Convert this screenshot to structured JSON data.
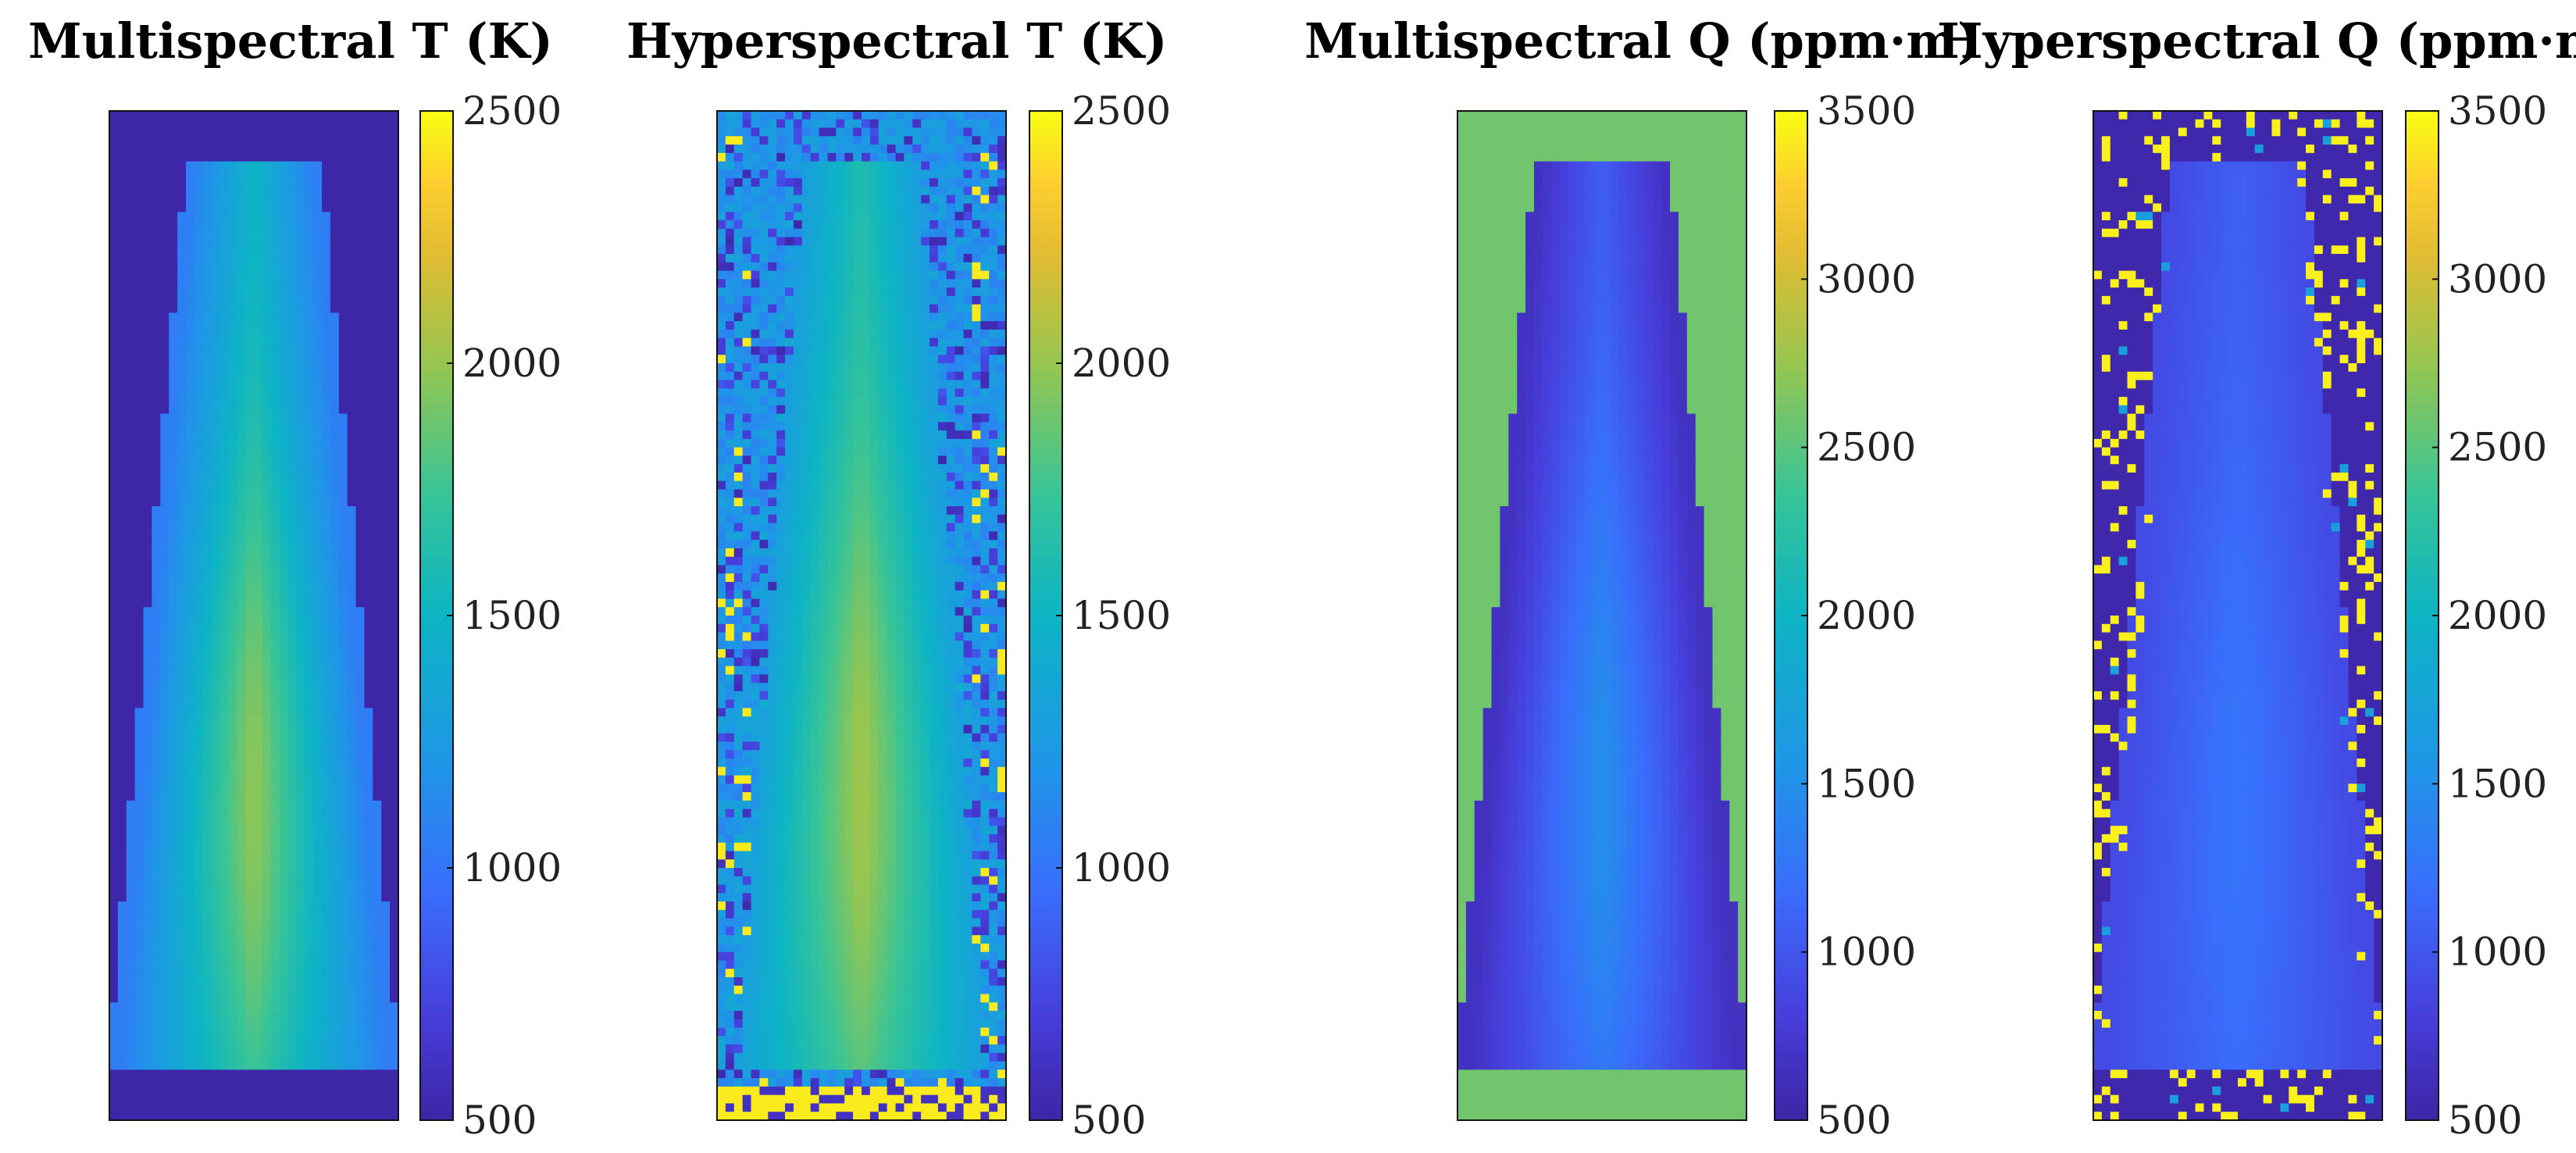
{
  "figure": {
    "description_type": "heatmap panels"
  },
  "chart_data": [
    {
      "type": "heatmap",
      "title": "Multispectral T (K)",
      "colormap": "parula",
      "clim": [
        500,
        2500
      ],
      "colorbar_ticks": [
        "500",
        "1000",
        "1500",
        "2000",
        "2500"
      ],
      "colorbar_tick_values": [
        500,
        1000,
        1500,
        2000,
        2500
      ],
      "background_value": 500,
      "plume_core_value": 2000,
      "plume_edge_value": 1050,
      "noise": "none"
    },
    {
      "type": "heatmap",
      "title": "Hyperspectral T (K)",
      "colormap": "parula",
      "clim": [
        500,
        2500
      ],
      "colorbar_ticks": [
        "500",
        "1000",
        "1500",
        "2000",
        "2500"
      ],
      "colorbar_tick_values": [
        500,
        1000,
        1500,
        2000,
        2500
      ],
      "background_value": 1200,
      "plume_core_value": 2050,
      "plume_edge_value": 1250,
      "noise": "speckled low and high outliers at edges"
    },
    {
      "type": "heatmap",
      "title": "Multispectral Q (ppm·m)",
      "colormap": "parula",
      "clim": [
        500,
        3500
      ],
      "colorbar_ticks": [
        "500",
        "1000",
        "1500",
        "2000",
        "2500",
        "3000",
        "3500"
      ],
      "colorbar_tick_values": [
        500,
        1000,
        1500,
        2000,
        2500,
        3000,
        3500
      ],
      "background_value": 2600,
      "plume_core_value": 1500,
      "plume_edge_value": 650,
      "noise": "none"
    },
    {
      "type": "heatmap",
      "title": "Hyperspectral Q (ppm·m)",
      "colormap": "parula",
      "clim": [
        500,
        3500
      ],
      "colorbar_ticks": [
        "500",
        "1000",
        "1500",
        "2000",
        "2500",
        "3000",
        "3500"
      ],
      "colorbar_tick_values": [
        500,
        1000,
        1500,
        2000,
        2500,
        3000,
        3500
      ],
      "background_value": 520,
      "plume_core_value": 1250,
      "plume_edge_value": 900,
      "noise": "sparse high outliers near edges"
    }
  ]
}
